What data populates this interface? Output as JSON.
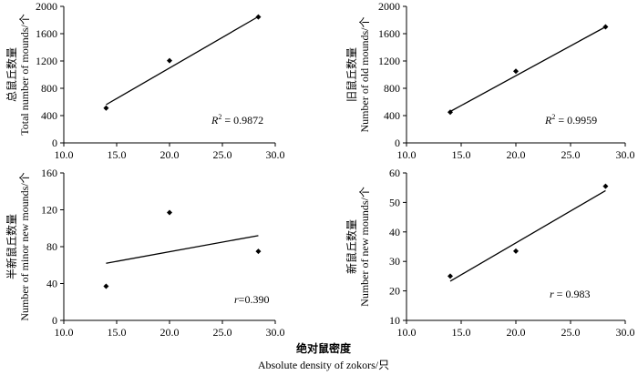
{
  "figure": {
    "xlabel_zh": "绝对鼠密度",
    "xlabel_en": "Absolute density of zokors/只"
  },
  "chart_data": [
    {
      "type": "scatter",
      "ylabel_zh": "总鼠丘数量",
      "ylabel_en": "Total number of mounds/个",
      "xlim": [
        10.0,
        30.0
      ],
      "xticks": [
        "10.0",
        "15.0",
        "20.0",
        "25.0",
        "30.0"
      ],
      "ylim": [
        0,
        2000
      ],
      "yticks": [
        "0",
        "400",
        "800",
        "1200",
        "1600",
        "2000"
      ],
      "points": [
        {
          "x": 14.0,
          "y": 510
        },
        {
          "x": 20.0,
          "y": 1205
        },
        {
          "x": 28.4,
          "y": 1845
        }
      ],
      "trendline": {
        "x": [
          14.0,
          28.4
        ],
        "y": [
          560,
          1850
        ]
      },
      "stat_label": "R",
      "stat_sup": "2",
      "stat_value": " = 0.9872"
    },
    {
      "type": "scatter",
      "ylabel_zh": "旧鼠丘数量",
      "ylabel_en": "Number of old mounds/个",
      "xlim": [
        10.0,
        30.0
      ],
      "xticks": [
        "10.0",
        "15.0",
        "20.0",
        "25.0",
        "30.0"
      ],
      "ylim": [
        0,
        2000
      ],
      "yticks": [
        "0",
        "400",
        "800",
        "1200",
        "1600",
        "2000"
      ],
      "points": [
        {
          "x": 14.0,
          "y": 450
        },
        {
          "x": 20.0,
          "y": 1050
        },
        {
          "x": 28.2,
          "y": 1700
        }
      ],
      "trendline": {
        "x": [
          14.0,
          28.2
        ],
        "y": [
          460,
          1700
        ]
      },
      "stat_label": "R",
      "stat_sup": "2",
      "stat_value": " = 0.9959"
    },
    {
      "type": "scatter",
      "ylabel_zh": "半新鼠丘数量",
      "ylabel_en": "Number of minor new mounds/个",
      "xlim": [
        10.0,
        30.0
      ],
      "xticks": [
        "10.0",
        "15.0",
        "20.0",
        "25.0",
        "30.0"
      ],
      "ylim": [
        0,
        160
      ],
      "yticks": [
        "0",
        "40",
        "80",
        "120",
        "160"
      ],
      "points": [
        {
          "x": 14.0,
          "y": 37
        },
        {
          "x": 20.0,
          "y": 117
        },
        {
          "x": 28.4,
          "y": 75
        }
      ],
      "trendline": {
        "x": [
          14.0,
          28.4
        ],
        "y": [
          62,
          92
        ]
      },
      "stat_label": "r",
      "stat_sup": "",
      "stat_value": "=0.390"
    },
    {
      "type": "scatter",
      "ylabel_zh": "新鼠丘数量",
      "ylabel_en": "Number of new mounds/个",
      "xlim": [
        10.0,
        30.0
      ],
      "xticks": [
        "10.0",
        "15.0",
        "20.0",
        "25.0",
        "30.0"
      ],
      "ylim": [
        10,
        60
      ],
      "yticks": [
        "10",
        "20",
        "30",
        "40",
        "50",
        "60"
      ],
      "points": [
        {
          "x": 14.0,
          "y": 25
        },
        {
          "x": 20.0,
          "y": 33.5
        },
        {
          "x": 28.2,
          "y": 55.5
        }
      ],
      "trendline": {
        "x": [
          14.0,
          28.2
        ],
        "y": [
          23.3,
          54.0
        ]
      },
      "stat_label": "r",
      "stat_sup": "",
      "stat_value": " = 0.983"
    }
  ]
}
